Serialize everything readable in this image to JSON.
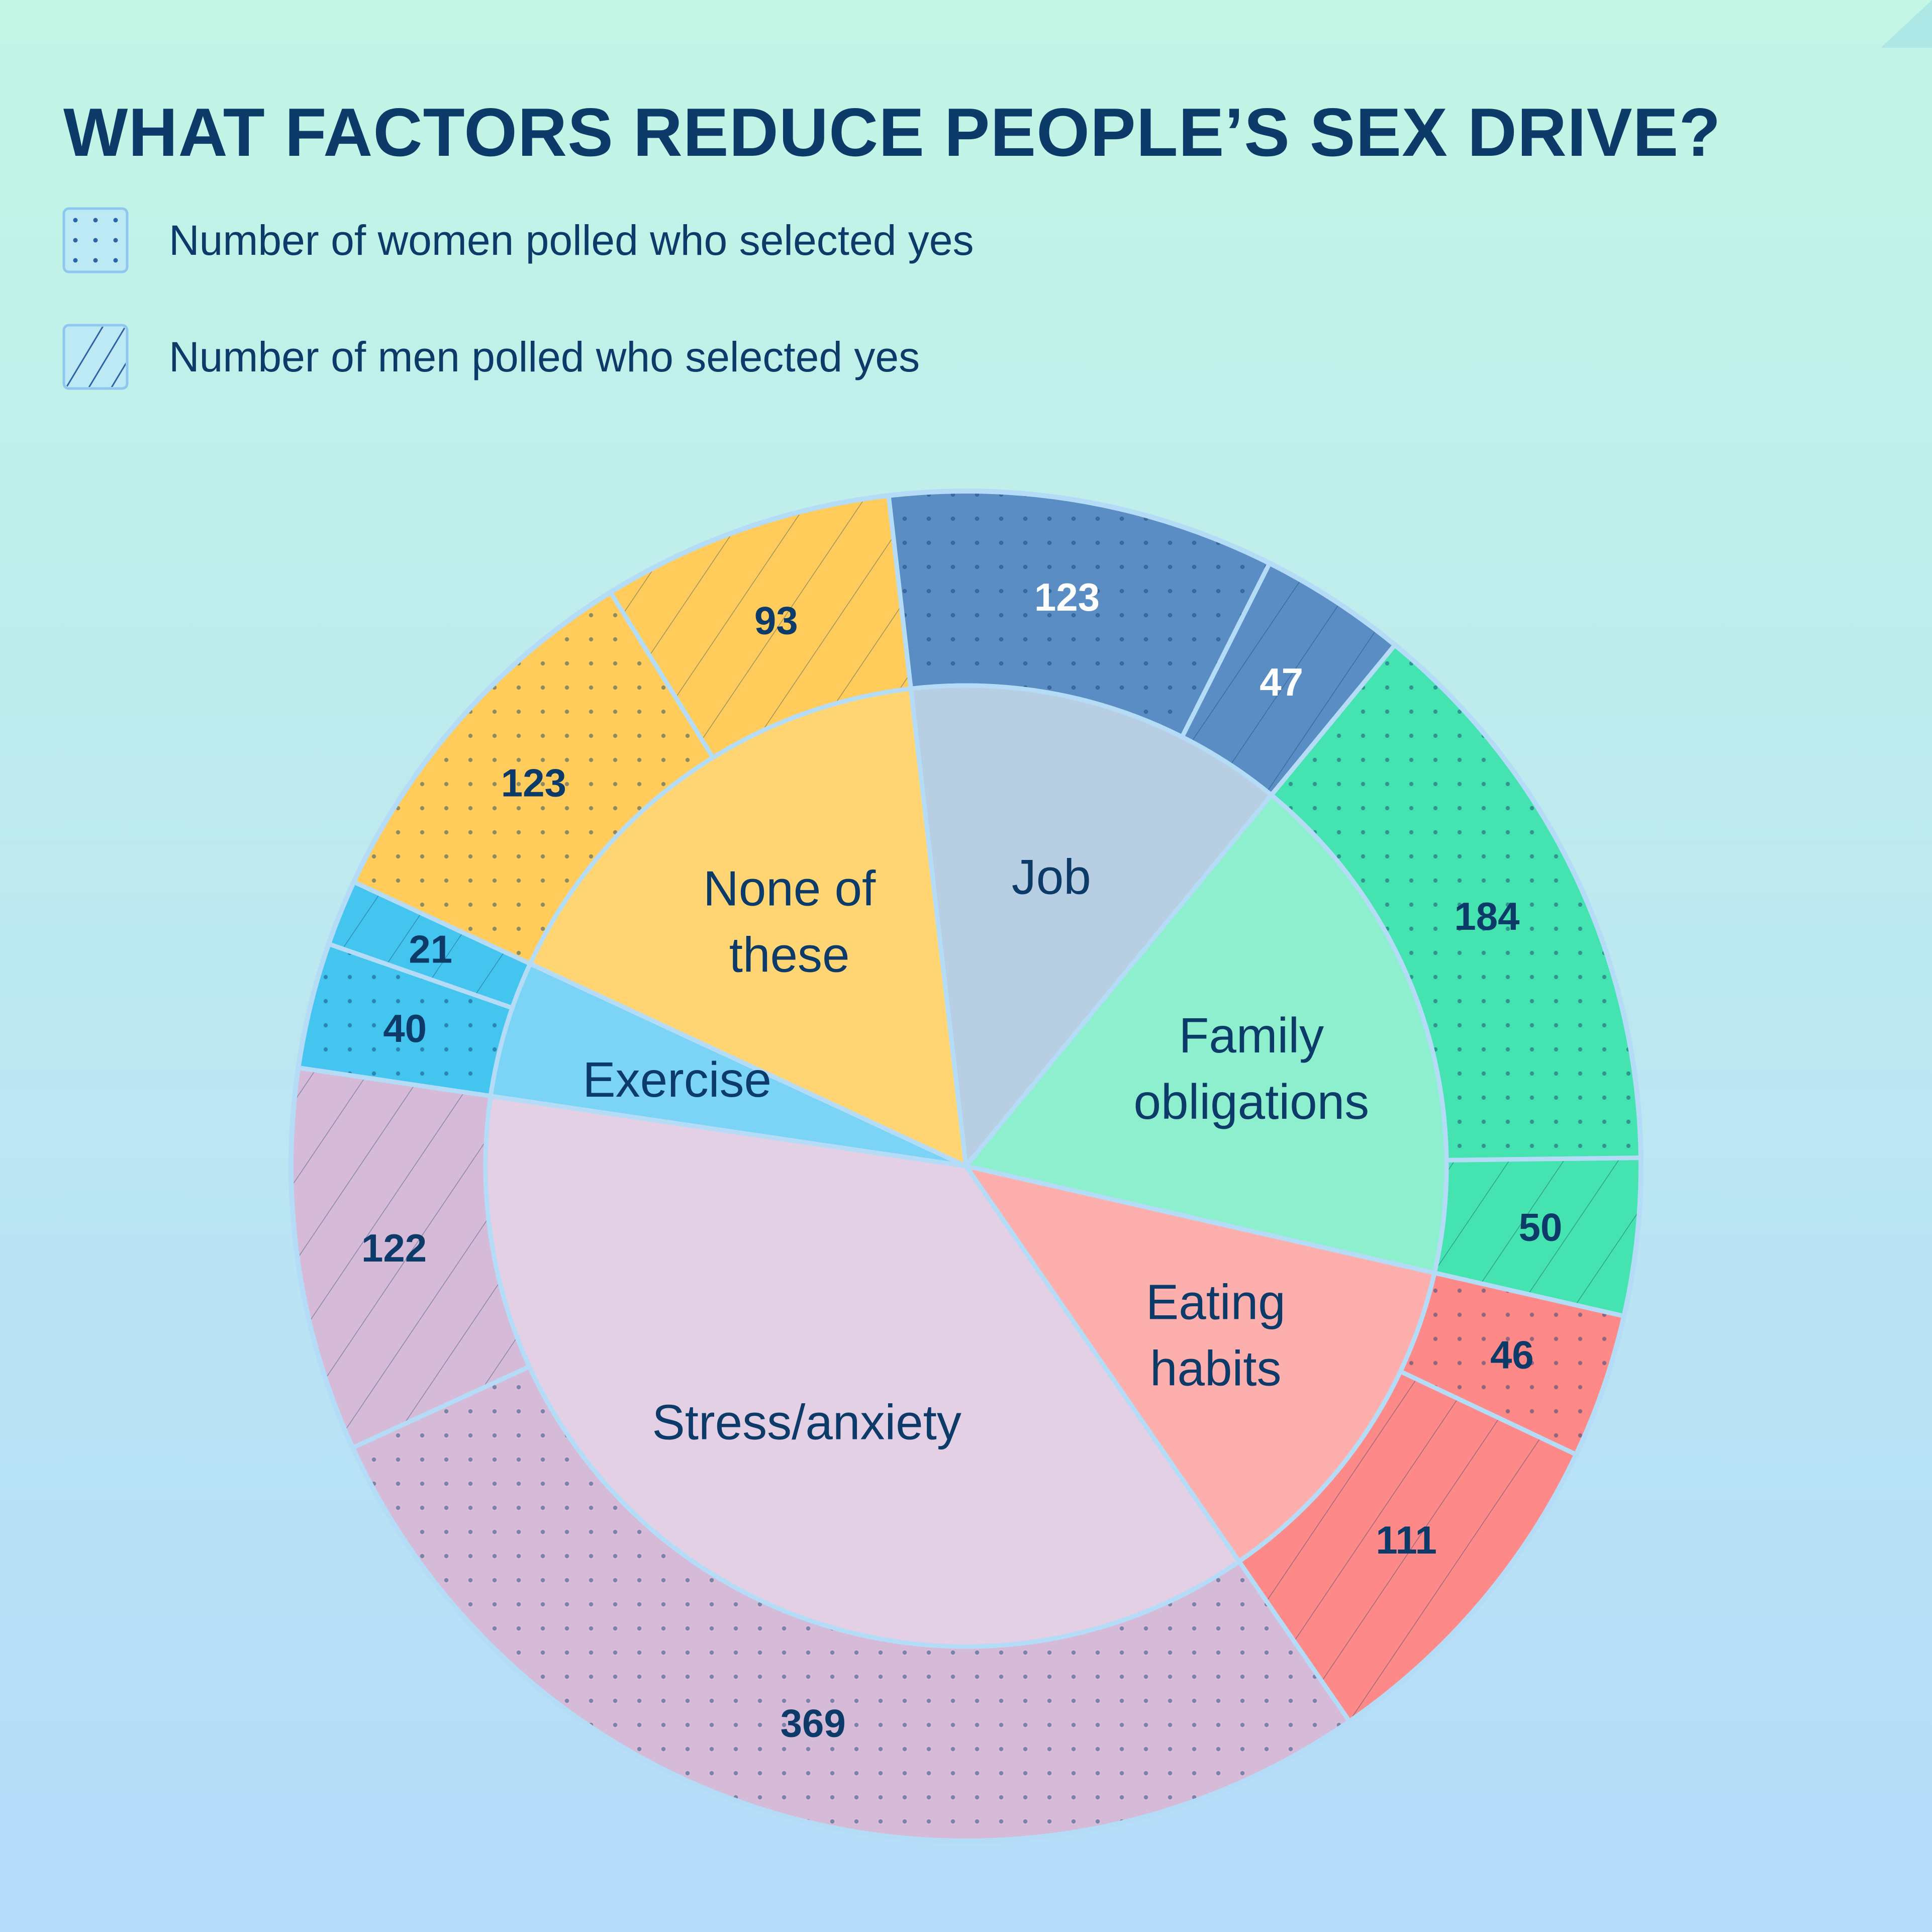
{
  "title": "WHAT FACTORS REDUCE PEOPLE’S SEX DRIVE?",
  "legend": [
    {
      "label": "Number of women polled who selected yes",
      "pattern": "dots"
    },
    {
      "label": "Number of men polled who selected yes",
      "pattern": "hatch"
    }
  ],
  "chart_data": {
    "type": "pie",
    "subtype": "nested-donut",
    "title": "WHAT FACTORS REDUCE PEOPLE’S SEX DRIVE?",
    "inner": [
      {
        "name": "Job",
        "value": 170,
        "lines": [
          "Job"
        ],
        "color": "#b8cee3"
      },
      {
        "name": "Family obligations",
        "value": 234,
        "lines": [
          "Family",
          "obligations"
        ],
        "color": "#8eefcf"
      },
      {
        "name": "Eating habits",
        "value": 157,
        "lines": [
          "Eating",
          "habits"
        ],
        "color": "#fdafae"
      },
      {
        "name": "Stress/anxiety",
        "value": 491,
        "lines": [
          "Stress/anxiety"
        ],
        "color": "#e4d0e5"
      },
      {
        "name": "Exercise",
        "value": 61,
        "lines": [
          "Exercise"
        ],
        "color": "#7bd4f5"
      },
      {
        "name": "None of these",
        "value": 216,
        "lines": [
          "None of",
          "these"
        ],
        "color": "#ffd673"
      }
    ],
    "outer": [
      {
        "category": "Job",
        "group": "women",
        "value": 123,
        "label": "123",
        "color": "#5a8dc4",
        "text_color": "#ffffff"
      },
      {
        "category": "Job",
        "group": "men",
        "value": 47,
        "label": "47",
        "color": "#5a8dc4",
        "text_color": "#ffffff"
      },
      {
        "category": "Family obligations",
        "group": "women",
        "value": 184,
        "label": "184",
        "color": "#45e3b0",
        "text_color": "#0c3b69"
      },
      {
        "category": "Family obligations",
        "group": "men",
        "value": 50,
        "label": "50",
        "color": "#45e3b0",
        "text_color": "#0c3b69"
      },
      {
        "category": "Eating habits",
        "group": "women",
        "value": 46,
        "label": "46",
        "color": "#fd8988",
        "text_color": "#0c3b69"
      },
      {
        "category": "Eating habits",
        "group": "men",
        "value": 111,
        "label": "111",
        "color": "#fd8988",
        "text_color": "#0c3b69"
      },
      {
        "category": "Stress/anxiety",
        "group": "women",
        "value": 369,
        "label": "369",
        "color": "#d6bbd9",
        "text_color": "#0c3b69"
      },
      {
        "category": "Stress/anxiety",
        "group": "men",
        "value": 122,
        "label": "122",
        "color": "#d6bbd9",
        "text_color": "#0c3b69"
      },
      {
        "category": "Exercise",
        "group": "women",
        "value": 40,
        "label": "40",
        "color": "#44c5ef",
        "text_color": "#0c3b69"
      },
      {
        "category": "Exercise",
        "group": "men",
        "value": 21,
        "label": "21",
        "color": "#44c5ef",
        "text_color": "#0c3b69"
      },
      {
        "category": "None of these",
        "group": "women",
        "value": 123,
        "label": "123",
        "color": "#ffcc5b",
        "text_color": "#0c3b69"
      },
      {
        "category": "None of these",
        "group": "men",
        "value": 93,
        "label": "93",
        "color": "#ffcc5b",
        "text_color": "#0c3b69"
      }
    ],
    "colors": {
      "text": "#0c3b69",
      "separator": "#b5dcf6"
    }
  }
}
